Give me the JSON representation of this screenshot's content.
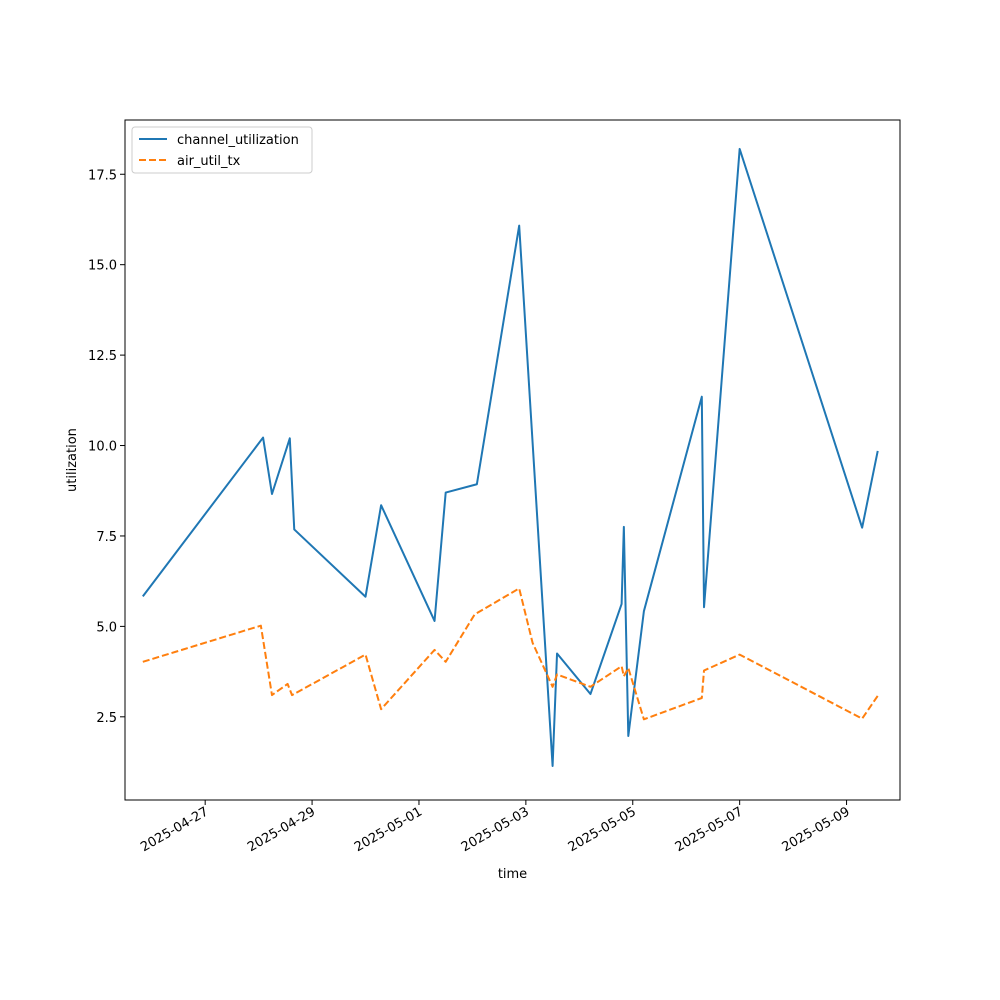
{
  "chart_data": {
    "type": "line",
    "xlabel": "time",
    "ylabel": "utilization",
    "x_type": "datetime",
    "xlim": [
      "2025-04-25T12:00",
      "2025-05-10T00:00"
    ],
    "ylim": [
      0.2,
      19.0
    ],
    "yticks": [
      2.5,
      5.0,
      7.5,
      10.0,
      12.5,
      15.0,
      17.5
    ],
    "ytick_labels": [
      "2.5",
      "5.0",
      "7.5",
      "10.0",
      "12.5",
      "15.0",
      "17.5"
    ],
    "xticks": [
      "2025-04-27",
      "2025-04-29",
      "2025-05-01",
      "2025-05-03",
      "2025-05-05",
      "2025-05-07",
      "2025-05-09"
    ],
    "xtick_labels": [
      "2025-04-27",
      "2025-04-29",
      "2025-05-01",
      "2025-05-03",
      "2025-05-05",
      "2025-05-07",
      "2025-05-09"
    ],
    "grid": false,
    "legend_position": "top-left",
    "series": [
      {
        "name": "channel_utilization",
        "color": "#1f77b4",
        "style": "solid",
        "points": [
          [
            "2025-04-25T20:00",
            5.83
          ],
          [
            "2025-04-28T02:00",
            10.22
          ],
          [
            "2025-04-28T06:00",
            8.66
          ],
          [
            "2025-04-28T14:00",
            10.2
          ],
          [
            "2025-04-28T16:00",
            7.68
          ],
          [
            "2025-04-30T00:00",
            5.82
          ],
          [
            "2025-04-30T07:00",
            8.35
          ],
          [
            "2025-05-01T07:00",
            5.15
          ],
          [
            "2025-05-01T12:00",
            8.7
          ],
          [
            "2025-05-02T02:00",
            8.93
          ],
          [
            "2025-05-02T21:00",
            16.08
          ],
          [
            "2025-05-03T12:00",
            1.14
          ],
          [
            "2025-05-03T14:00",
            4.25
          ],
          [
            "2025-05-04T05:00",
            3.13
          ],
          [
            "2025-05-04T19:00",
            5.62
          ],
          [
            "2025-05-04T20:00",
            7.75
          ],
          [
            "2025-05-04T22:00",
            1.97
          ],
          [
            "2025-05-05T05:00",
            5.42
          ],
          [
            "2025-05-06T07:00",
            11.35
          ],
          [
            "2025-05-06T08:00",
            5.53
          ],
          [
            "2025-05-07T00:00",
            18.2
          ],
          [
            "2025-05-09T07:00",
            7.73
          ],
          [
            "2025-05-09T14:00",
            9.85
          ]
        ]
      },
      {
        "name": "air_util_tx",
        "color": "#ff7f0e",
        "style": "dashed",
        "points": [
          [
            "2025-04-25T20:00",
            4.02
          ],
          [
            "2025-04-28T01:00",
            5.02
          ],
          [
            "2025-04-28T06:00",
            3.1
          ],
          [
            "2025-04-28T13:00",
            3.41
          ],
          [
            "2025-04-28T15:00",
            3.1
          ],
          [
            "2025-04-30T00:00",
            4.22
          ],
          [
            "2025-04-30T07:00",
            2.71
          ],
          [
            "2025-05-01T07:00",
            4.35
          ],
          [
            "2025-05-01T12:00",
            4.02
          ],
          [
            "2025-05-02T01:00",
            5.33
          ],
          [
            "2025-05-02T21:00",
            6.05
          ],
          [
            "2025-05-03T03:00",
            4.55
          ],
          [
            "2025-05-03T12:00",
            3.33
          ],
          [
            "2025-05-03T14:00",
            3.67
          ],
          [
            "2025-05-04T05:00",
            3.33
          ],
          [
            "2025-05-04T19:00",
            3.9
          ],
          [
            "2025-05-04T20:00",
            3.62
          ],
          [
            "2025-05-04T22:00",
            3.85
          ],
          [
            "2025-05-05T05:00",
            2.43
          ],
          [
            "2025-05-06T07:00",
            3.02
          ],
          [
            "2025-05-06T08:00",
            3.78
          ],
          [
            "2025-05-07T00:00",
            4.22
          ],
          [
            "2025-05-09T07:00",
            2.45
          ],
          [
            "2025-05-09T14:00",
            3.08
          ]
        ]
      }
    ]
  }
}
